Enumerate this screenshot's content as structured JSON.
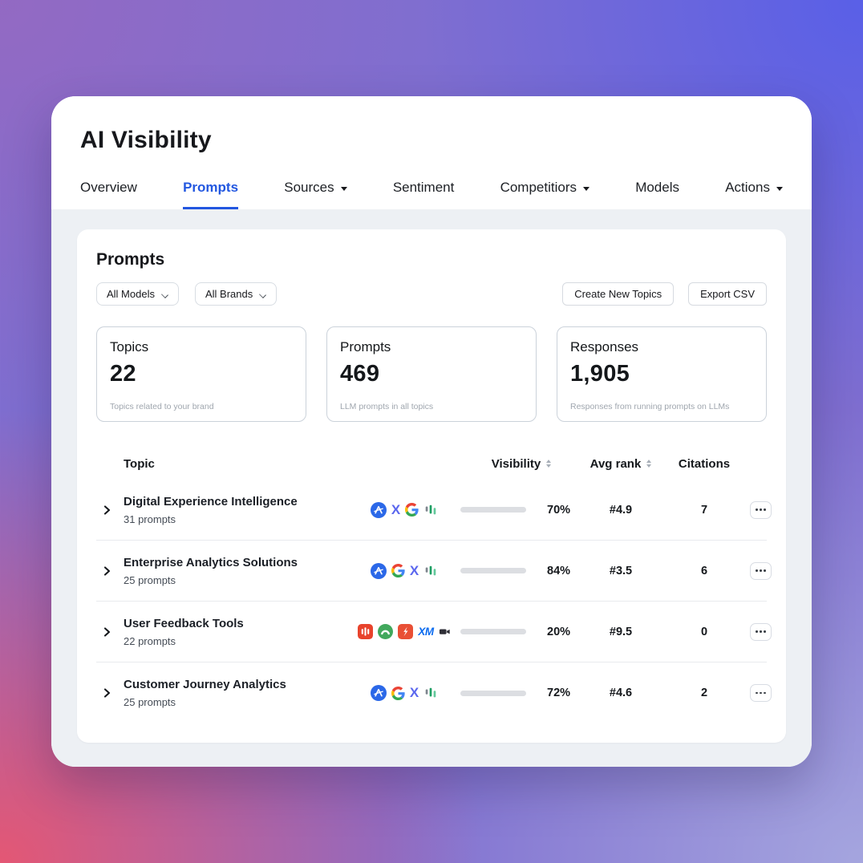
{
  "header": {
    "title": "AI Visibility"
  },
  "tabs": [
    {
      "label": "Overview",
      "active": false,
      "caret": false
    },
    {
      "label": "Prompts",
      "active": true,
      "caret": false
    },
    {
      "label": "Sources",
      "active": false,
      "caret": true
    },
    {
      "label": "Sentiment",
      "active": false,
      "caret": false
    },
    {
      "label": "Competitiors",
      "active": false,
      "caret": true
    },
    {
      "label": "Models",
      "active": false,
      "caret": false
    },
    {
      "label": "Actions",
      "active": false,
      "caret": true
    }
  ],
  "colors": {
    "accent": "#2257E0",
    "bar_track": "#DCDEE2",
    "orange": "#F59C0B",
    "green": "#0FB77A",
    "red": "#EE4B3B"
  },
  "panel": {
    "heading": "Prompts",
    "filters": [
      {
        "label": "All Models"
      },
      {
        "label": "All Brands"
      }
    ],
    "actions": [
      {
        "label": "Create New Topics"
      },
      {
        "label": "Export CSV"
      }
    ],
    "stats": [
      {
        "label": "Topics",
        "value": "22",
        "description": "Topics related to your brand"
      },
      {
        "label": "Prompts",
        "value": "469",
        "description": "LLM prompts in all topics"
      },
      {
        "label": "Responses",
        "value": "1,905",
        "description": "Responses from running prompts on LLMs"
      }
    ],
    "table": {
      "columns": {
        "topic": "Topic",
        "visibility": "Visibility",
        "avg_rank": "Avg rank",
        "citations": "Citations"
      },
      "rows": [
        {
          "topic": "Digital Experience Intelligence",
          "prompts": "31 prompts",
          "icons": [
            "circle-a",
            "letter-x",
            "google-g",
            "bar-chart"
          ],
          "visibility_pct": 70,
          "visibility_label": "70%",
          "bar_color": "#F59C0B",
          "avg_rank": "#4.9",
          "citations": "7"
        },
        {
          "topic": "Enterprise Analytics Solutions",
          "prompts": "25 prompts",
          "icons": [
            "circle-a",
            "google-g",
            "letter-x",
            "bar-chart"
          ],
          "visibility_pct": 84,
          "visibility_label": "84%",
          "bar_color": "#0FB77A",
          "avg_rank": "#3.5",
          "citations": "6"
        },
        {
          "topic": "User Feedback Tools",
          "prompts": "22 prompts",
          "icons": [
            "red-stripes-square",
            "green-arc-circle",
            "red-bolt-square",
            "xm-letters",
            "camcorder"
          ],
          "visibility_pct": 20,
          "visibility_label": "20%",
          "bar_color": "#EE4B3B",
          "avg_rank": "#9.5",
          "citations": "0"
        },
        {
          "topic": "Customer Journey Analytics",
          "prompts": "25 prompts",
          "icons": [
            "circle-a",
            "google-g",
            "letter-x",
            "bar-chart"
          ],
          "visibility_pct": 72,
          "visibility_label": "72%",
          "bar_color": "#F59C0B",
          "avg_rank": "#4.6",
          "citations": "2"
        }
      ]
    }
  }
}
